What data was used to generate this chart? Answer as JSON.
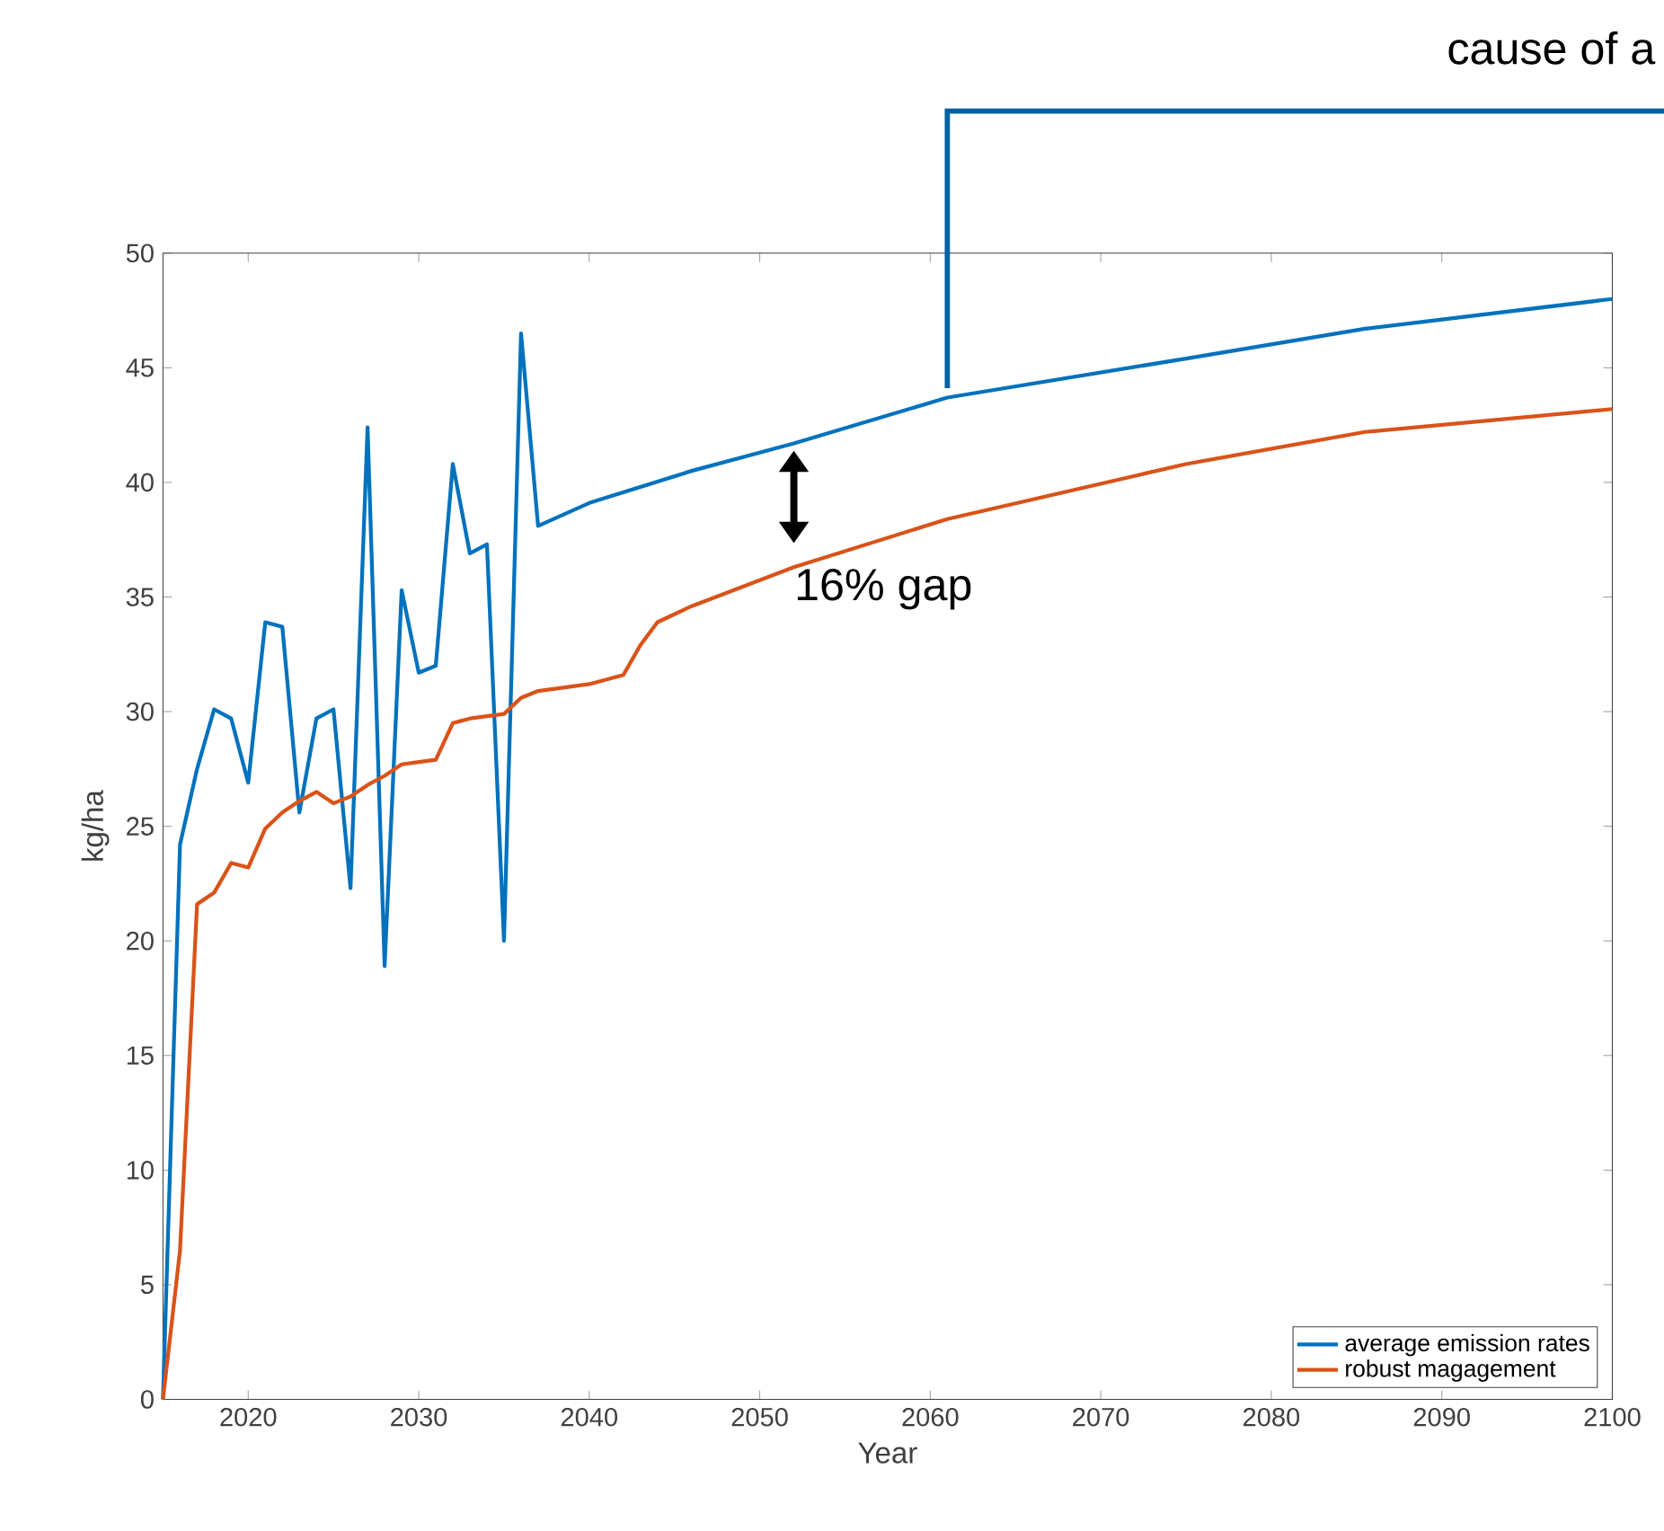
{
  "chart_data": {
    "type": "line",
    "xlabel": "Year",
    "ylabel": "kg/ha",
    "xlim": [
      2015,
      2100
    ],
    "ylim": [
      0,
      50
    ],
    "xticks": [
      2020,
      2030,
      2040,
      2050,
      2060,
      2070,
      2080,
      2090,
      2100
    ],
    "yticks": [
      0,
      5,
      10,
      15,
      20,
      25,
      30,
      35,
      40,
      45,
      50
    ],
    "legend": "bottom right",
    "grid": false,
    "line_style": "solid",
    "marker": "none",
    "series": [
      {
        "name": "average emission rates",
        "color": "#0072bd",
        "x": [
          2015,
          2016,
          2017,
          2018,
          2019,
          2020,
          2021,
          2022,
          2023,
          2024,
          2025,
          2026,
          2027,
          2028,
          2029,
          2030,
          2031,
          2032,
          2033,
          2034,
          2035,
          2036,
          2037,
          2040,
          2046,
          2052,
          2061,
          2075,
          2085.5,
          2100
        ],
        "values": [
          0,
          24.2,
          27.5,
          30.1,
          29.7,
          26.9,
          33.9,
          33.7,
          25.6,
          29.7,
          30.1,
          22.3,
          42.4,
          18.9,
          35.3,
          31.7,
          32.0,
          40.8,
          36.9,
          37.3,
          20.0,
          46.5,
          38.1,
          39.1,
          40.5,
          41.7,
          43.7,
          45.4,
          46.7,
          48.0
        ]
      },
      {
        "name": "robust magagement",
        "color": "#d95319",
        "x": [
          2015,
          2016,
          2017,
          2018,
          2019,
          2020,
          2021,
          2022,
          2023,
          2024,
          2025,
          2026,
          2027,
          2028,
          2029,
          2030,
          2031,
          2032,
          2033,
          2035,
          2036,
          2037,
          2040,
          2042,
          2043,
          2044,
          2046,
          2052,
          2061,
          2075,
          2085.5,
          2100
        ],
        "values": [
          0,
          6.5,
          21.6,
          22.1,
          23.4,
          23.2,
          24.9,
          25.6,
          26.1,
          26.5,
          26.0,
          26.3,
          26.8,
          27.2,
          27.7,
          27.8,
          27.9,
          29.5,
          29.7,
          29.9,
          30.6,
          30.9,
          31.2,
          31.6,
          32.9,
          33.9,
          34.6,
          36.3,
          38.4,
          40.8,
          42.2,
          43.2
        ]
      }
    ],
    "annotations": [
      {
        "text": "16% gap",
        "x": 2052,
        "y": 41.7
      },
      {
        "text": "cause of a",
        "x": 2061,
        "y": 43.7
      }
    ]
  }
}
